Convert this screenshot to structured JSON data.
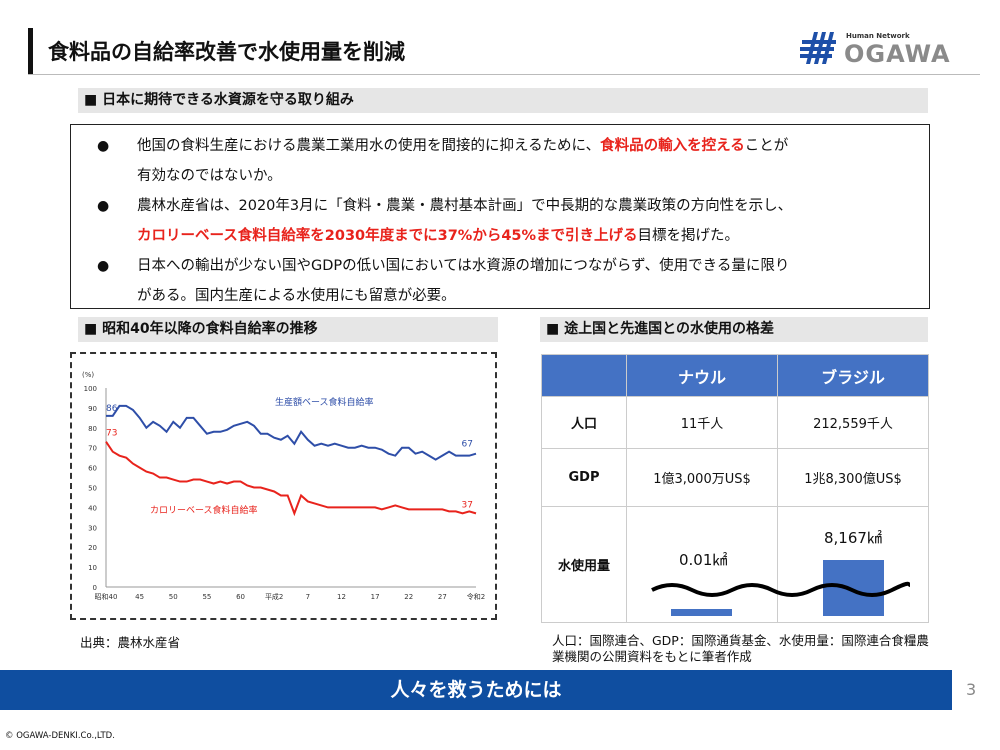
{
  "header": {
    "title": "食料品の自給率改善で水使用量を削減",
    "logo_text": "OGAWA",
    "logo_tagline": "Human Network"
  },
  "section1": {
    "heading": "■ 日本に期待できる水資源を守る取り組み",
    "bullets": [
      {
        "lines": [
          [
            "他国の食料生産における農業工業用水の使用を間接的に抑えるために、",
            ""
          ],
          [
            "食料品の輸入を控える",
            "red"
          ],
          [
            "ことが",
            ""
          ]
        ],
        "line2": "有効なのではないか。"
      },
      {
        "line1": "農林水産省は、2020年3月に「食料・農業・農村基本計画」で中長期的な農業政策の方向性を示し、",
        "line2_red": "カロリーベース食料自給率を2030年度までに37%から45%まで引き上げる",
        "line2_rest": "目標を掲げた。"
      },
      {
        "line1": "日本への輸出が少ない国やGDPの低い国においては水資源の増加につながらず、使用できる量に限り",
        "line2": "がある。国内生産による水使用にも留意が必要。"
      }
    ],
    "bullet1_a": "他国の食料生産における農業工業用水の使用を間接的に抑えるために、",
    "bullet1_red": "食料品の輸入を控える",
    "bullet1_b": "ことが"
  },
  "section2": {
    "heading": "■ 昭和40年以降の食料自給率の推移",
    "source": "出典：農林水産省"
  },
  "chart_data": {
    "type": "line",
    "ylabel": "(%)",
    "ylim": [
      0,
      100
    ],
    "yticks": [
      0,
      10,
      20,
      30,
      40,
      50,
      60,
      70,
      80,
      90,
      100
    ],
    "xtick_labels": [
      "昭和40",
      "45",
      "50",
      "55",
      "60",
      "平成2",
      "7",
      "12",
      "17",
      "22",
      "27",
      "令和2"
    ],
    "x": [
      1965,
      1966,
      1967,
      1968,
      1969,
      1970,
      1971,
      1972,
      1973,
      1974,
      1975,
      1976,
      1977,
      1978,
      1979,
      1980,
      1981,
      1982,
      1983,
      1984,
      1985,
      1986,
      1987,
      1988,
      1989,
      1990,
      1991,
      1992,
      1993,
      1994,
      1995,
      1996,
      1997,
      1998,
      1999,
      2000,
      2001,
      2002,
      2003,
      2004,
      2005,
      2006,
      2007,
      2008,
      2009,
      2010,
      2011,
      2012,
      2013,
      2014,
      2015,
      2016,
      2017,
      2018,
      2019,
      2020
    ],
    "series": [
      {
        "name": "生産額ベース食料自給率",
        "color": "#2e4ea8",
        "start_label": "86",
        "end_label": "67",
        "values": [
          86,
          86,
          91,
          91,
          89,
          85,
          80,
          83,
          81,
          78,
          83,
          80,
          85,
          85,
          81,
          77,
          78,
          78,
          79,
          81,
          82,
          83,
          81,
          77,
          77,
          75,
          74,
          76,
          72,
          78,
          74,
          71,
          72,
          71,
          72,
          71,
          70,
          70,
          71,
          70,
          70,
          69,
          67,
          66,
          70,
          70,
          67,
          68,
          66,
          64,
          66,
          68,
          66,
          66,
          66,
          67
        ]
      },
      {
        "name": "カロリーベース食料自給率",
        "color": "#e8231c",
        "start_label": "73",
        "end_label": "37",
        "values": [
          73,
          68,
          66,
          65,
          62,
          60,
          58,
          57,
          55,
          55,
          54,
          53,
          53,
          54,
          54,
          53,
          52,
          53,
          52,
          53,
          53,
          51,
          50,
          50,
          49,
          48,
          46,
          46,
          37,
          46,
          43,
          42,
          41,
          40,
          40,
          40,
          40,
          40,
          40,
          40,
          40,
          39,
          40,
          41,
          40,
          39,
          39,
          39,
          39,
          39,
          39,
          38,
          38,
          37,
          38,
          37
        ]
      }
    ]
  },
  "section3": {
    "heading": "■ 途上国と先進国との水使用の格差",
    "table": {
      "columns": [
        "ナウル",
        "ブラジル"
      ],
      "rows": [
        {
          "label": "人口",
          "values": [
            "11千人",
            "212,559千人"
          ]
        },
        {
          "label": "GDP",
          "values": [
            "1億3,000万US$",
            "1兆8,300億US$"
          ]
        },
        {
          "label": "水使用量",
          "values": [
            "0.01㎢",
            "8,167㎢"
          ]
        }
      ]
    },
    "note": "人口：国際連合、GDP：国際通貨基金、水使用量：国際連合食糧農業機関の公開資料をもとに筆者作成",
    "bar_color": "#4472c4"
  },
  "footer": {
    "banner": "人々を救うためには",
    "page": "3",
    "copyright": "© OGAWA-DENKI.Co.,LTD."
  }
}
